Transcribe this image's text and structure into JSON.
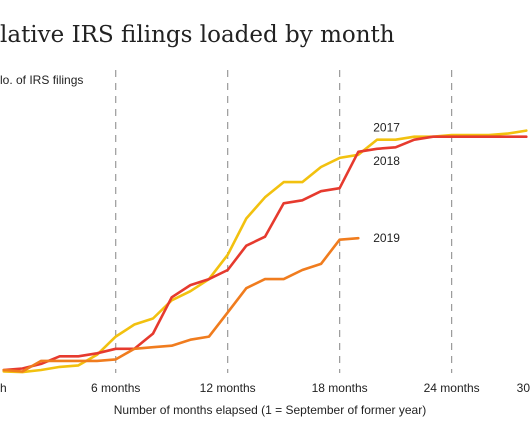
{
  "chart_data": {
    "type": "line",
    "title": "lative IRS filings loaded by month",
    "ylabel": "lo. of IRS filings",
    "xlabel": "Number of months elapsed (1 = September of former year)",
    "xlim": [
      -0.2,
      28.2
    ],
    "ylim": [
      0,
      100
    ],
    "grid": "vertical-dashed",
    "vlines": [
      6,
      12,
      18,
      24,
      30
    ],
    "xticks": [
      {
        "x": 0,
        "label": "h"
      },
      {
        "x": 6,
        "label": "6 months"
      },
      {
        "x": 12,
        "label": "12 months"
      },
      {
        "x": 18,
        "label": "18 months"
      },
      {
        "x": 24,
        "label": "24 months"
      },
      {
        "x": 30,
        "label": "30"
      }
    ],
    "series": [
      {
        "name": "2017",
        "color": "#f2c10f",
        "points": [
          [
            0,
            0.5
          ],
          [
            1,
            0.3
          ],
          [
            2,
            1
          ],
          [
            3,
            2
          ],
          [
            4,
            2.5
          ],
          [
            5,
            6
          ],
          [
            6,
            12
          ],
          [
            7,
            16
          ],
          [
            8,
            18
          ],
          [
            9,
            24
          ],
          [
            10,
            27
          ],
          [
            11,
            31
          ],
          [
            12,
            39
          ],
          [
            13,
            51
          ],
          [
            14,
            58
          ],
          [
            15,
            63
          ],
          [
            16,
            63
          ],
          [
            17,
            68
          ],
          [
            18,
            71
          ],
          [
            19,
            72
          ],
          [
            20,
            77
          ],
          [
            21,
            77
          ],
          [
            22,
            78
          ],
          [
            23,
            78
          ],
          [
            24,
            78.5
          ],
          [
            25,
            78.5
          ],
          [
            26,
            78.5
          ],
          [
            27,
            79
          ],
          [
            28,
            80
          ]
        ]
      },
      {
        "name": "2018",
        "color": "#e63a2e",
        "points": [
          [
            0,
            1
          ],
          [
            1,
            1.5
          ],
          [
            2,
            3
          ],
          [
            3,
            5.5
          ],
          [
            4,
            5.5
          ],
          [
            5,
            6.5
          ],
          [
            6,
            8
          ],
          [
            7,
            8
          ],
          [
            8,
            13
          ],
          [
            9,
            25
          ],
          [
            10,
            29
          ],
          [
            11,
            31
          ],
          [
            12,
            34
          ],
          [
            13,
            42
          ],
          [
            14,
            45
          ],
          [
            15,
            56
          ],
          [
            16,
            57
          ],
          [
            17,
            60
          ],
          [
            18,
            61
          ],
          [
            19,
            73
          ],
          [
            20,
            74
          ],
          [
            21,
            74.5
          ],
          [
            22,
            77
          ],
          [
            23,
            78
          ],
          [
            24,
            78
          ],
          [
            25,
            78
          ],
          [
            26,
            78
          ],
          [
            27,
            78
          ],
          [
            28,
            78
          ]
        ]
      },
      {
        "name": "2019",
        "color": "#f07c1e",
        "points": [
          [
            0,
            1
          ],
          [
            1,
            0.5
          ],
          [
            2,
            4
          ],
          [
            3,
            4
          ],
          [
            4,
            4
          ],
          [
            5,
            4
          ],
          [
            6,
            4.5
          ],
          [
            7,
            8
          ],
          [
            8,
            8.5
          ],
          [
            9,
            9
          ],
          [
            10,
            11
          ],
          [
            11,
            12
          ],
          [
            12,
            20
          ],
          [
            13,
            28
          ],
          [
            14,
            31
          ],
          [
            15,
            31
          ],
          [
            16,
            34
          ],
          [
            17,
            36
          ],
          [
            18,
            44
          ],
          [
            19,
            44.5
          ]
        ]
      }
    ],
    "series_labels": [
      {
        "name": "2017",
        "x": 19.8,
        "y": 81
      },
      {
        "name": "2018",
        "x": 19.8,
        "y": 70
      },
      {
        "name": "2019",
        "x": 19.8,
        "y": 44.5
      }
    ]
  }
}
